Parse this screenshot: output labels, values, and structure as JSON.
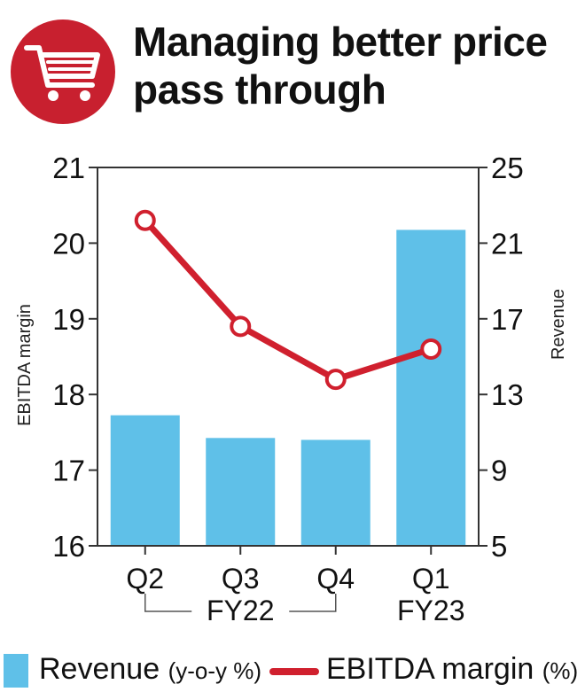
{
  "header": {
    "title_line1": "Managing better price",
    "title_line2": "pass through",
    "icon": "shopping-cart-icon",
    "badge_color": "#c8202f"
  },
  "chart_data": {
    "type": "bar",
    "categories": [
      "Q2",
      "Q3",
      "Q4",
      "Q1"
    ],
    "fiscal_groups": [
      {
        "label": "FY22",
        "categories": [
          "Q2",
          "Q3",
          "Q4"
        ]
      },
      {
        "label": "FY23",
        "categories": [
          "Q1"
        ]
      }
    ],
    "series": [
      {
        "name": "Revenue",
        "unit_label": "(y-o-y %)",
        "type": "bar",
        "axis": "right",
        "color": "#5fc0e8",
        "values": [
          11.9,
          10.7,
          10.6,
          21.7
        ]
      },
      {
        "name": "EBITDA margin",
        "unit_label": "(%)",
        "type": "line",
        "axis": "left",
        "color": "#d0202e",
        "values": [
          20.3,
          18.9,
          18.2,
          18.6
        ]
      }
    ],
    "left_axis": {
      "label": "EBITDA margin",
      "ticks": [
        16,
        17,
        18,
        19,
        20,
        21
      ],
      "range": [
        16,
        21
      ]
    },
    "right_axis": {
      "label": "Revenue",
      "ticks": [
        5,
        9,
        13,
        17,
        21,
        25
      ],
      "range": [
        5,
        25
      ]
    },
    "grid": false,
    "legend_position": "bottom"
  }
}
